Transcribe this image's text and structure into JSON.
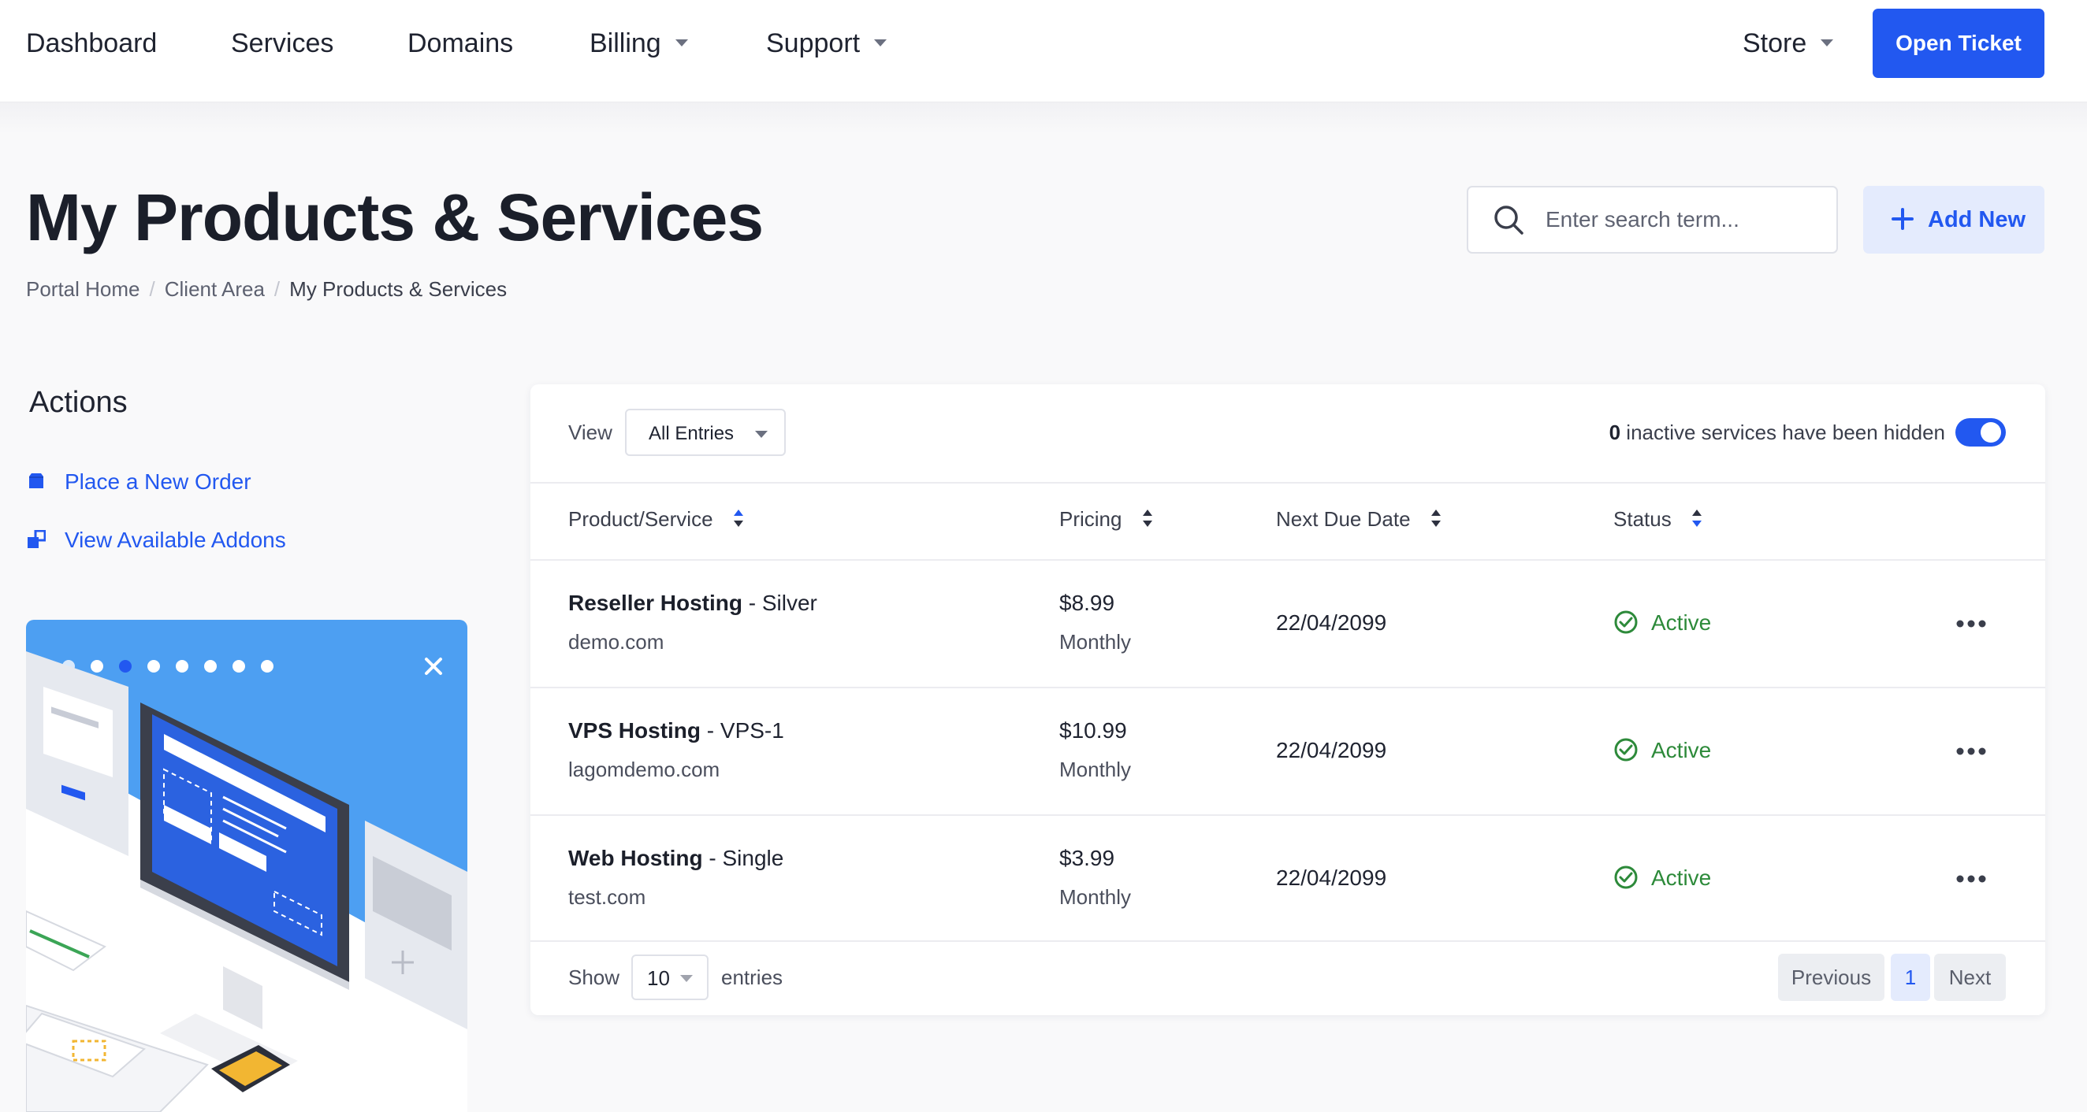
{
  "nav": {
    "items": [
      {
        "label": "Dashboard",
        "has_caret": false
      },
      {
        "label": "Services",
        "has_caret": false
      },
      {
        "label": "Domains",
        "has_caret": false
      },
      {
        "label": "Billing",
        "has_caret": true
      },
      {
        "label": "Support",
        "has_caret": true
      }
    ],
    "store_label": "Store",
    "open_ticket_label": "Open Ticket"
  },
  "header": {
    "title": "My Products & Services",
    "breadcrumb": [
      "Portal Home",
      "Client Area",
      "My Products & Services"
    ],
    "search_placeholder": "Enter search term...",
    "add_new_label": "Add New"
  },
  "sidebar": {
    "title": "Actions",
    "links": [
      {
        "label": "Place a New Order",
        "icon": "shopping-bag-icon"
      },
      {
        "label": "View Available Addons",
        "icon": "addons-icon"
      }
    ]
  },
  "table": {
    "view_label": "View",
    "view_value": "All Entries",
    "hidden_count": "0",
    "hidden_text": "inactive services have been hidden",
    "toggle_on": true,
    "columns": [
      "Product/Service",
      "Pricing",
      "Next Due Date",
      "Status"
    ],
    "rows": [
      {
        "product": "Reseller Hosting",
        "plan": " - Silver",
        "domain": "demo.com",
        "price": "$8.99",
        "cycle": "Monthly",
        "due": "22/04/2099",
        "status": "Active"
      },
      {
        "product": "VPS Hosting",
        "plan": " - VPS-1",
        "domain": "lagomdemo.com",
        "price": "$10.99",
        "cycle": "Monthly",
        "due": "22/04/2099",
        "status": "Active"
      },
      {
        "product": "Web Hosting",
        "plan": " - Single",
        "domain": "test.com",
        "price": "$3.99",
        "cycle": "Monthly",
        "due": "22/04/2099",
        "status": "Active"
      }
    ],
    "show_label": "Show",
    "show_value": "10",
    "entries_label": "entries",
    "pagination": {
      "previous": "Previous",
      "page": "1",
      "next": "Next"
    }
  },
  "colors": {
    "accent": "#2258f0",
    "accent_light": "#e4ebfd",
    "status_active": "#2d8a3a"
  }
}
